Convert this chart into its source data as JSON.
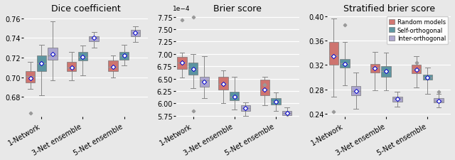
{
  "titles": [
    "Dice coefficient",
    "Brier score",
    "Stratified brier score"
  ],
  "x_labels": [
    "1-Network",
    "3-Net ensemble",
    "5-Net ensemble"
  ],
  "colors": {
    "random": "#C95B54",
    "self": "#3D8290",
    "inter": "#9E96C8"
  },
  "legend_labels": [
    "Random models",
    "Self-orthogonal",
    "Inter-orthogonal"
  ],
  "dice": {
    "random": {
      "1net": {
        "q1": 0.695,
        "med": 0.701,
        "q3": 0.706,
        "whislo": 0.688,
        "whishi": 0.716,
        "mean": 0.699,
        "fliers_lo": [
          0.664
        ],
        "fliers_hi": []
      },
      "3net": {
        "q1": 0.706,
        "med": 0.71,
        "q3": 0.716,
        "whislo": 0.697,
        "whishi": 0.726,
        "mean": 0.71,
        "fliers_lo": [],
        "fliers_hi": []
      },
      "5net": {
        "q1": 0.706,
        "med": 0.711,
        "q3": 0.717,
        "whislo": 0.7,
        "whishi": 0.722,
        "mean": 0.711,
        "fliers_lo": [],
        "fliers_hi": []
      }
    },
    "self": {
      "1net": {
        "q1": 0.706,
        "med": 0.714,
        "q3": 0.722,
        "whislo": 0.682,
        "whishi": 0.733,
        "mean": 0.714,
        "fliers_lo": [],
        "fliers_hi": []
      },
      "3net": {
        "q1": 0.717,
        "med": 0.721,
        "q3": 0.726,
        "whislo": 0.702,
        "whishi": 0.732,
        "mean": 0.721,
        "fliers_lo": [],
        "fliers_hi": []
      },
      "5net": {
        "q1": 0.718,
        "med": 0.722,
        "q3": 0.726,
        "whislo": 0.712,
        "whishi": 0.733,
        "mean": 0.722,
        "fliers_lo": [],
        "fliers_hi": []
      }
    },
    "inter": {
      "1net": {
        "q1": 0.718,
        "med": 0.722,
        "q3": 0.73,
        "whislo": 0.697,
        "whishi": 0.757,
        "mean": 0.724,
        "fliers_lo": [],
        "fliers_hi": []
      },
      "3net": {
        "q1": 0.737,
        "med": 0.74,
        "q3": 0.742,
        "whislo": 0.73,
        "whishi": 0.746,
        "mean": 0.74,
        "fliers_lo": [],
        "fliers_hi": []
      },
      "5net": {
        "q1": 0.742,
        "med": 0.745,
        "q3": 0.748,
        "whislo": 0.736,
        "whishi": 0.752,
        "mean": 0.745,
        "fliers_lo": [],
        "fliers_hi": []
      }
    }
  },
  "brier": {
    "random": {
      "1net": {
        "q1": 0.00067,
        "med": 0.000682,
        "q3": 0.000694,
        "whislo": 0.000652,
        "whishi": 0.000702,
        "mean": 0.000682,
        "fliers_lo": [],
        "fliers_hi": [
          0.000768
        ]
      },
      "3net": {
        "q1": 0.000628,
        "med": 0.00064,
        "q3": 0.000654,
        "whislo": 0.0006,
        "whishi": 0.000666,
        "mean": 0.00064,
        "fliers_lo": [],
        "fliers_hi": []
      },
      "5net": {
        "q1": 0.000616,
        "med": 0.000628,
        "q3": 0.000648,
        "whislo": 0.000596,
        "whishi": 0.000654,
        "mean": 0.000628,
        "fliers_lo": [],
        "fliers_hi": [
          0.000638
        ]
      }
    },
    "self": {
      "1net": {
        "q1": 0.000658,
        "med": 0.00067,
        "q3": 0.000682,
        "whislo": 0.00063,
        "whishi": 0.0007,
        "mean": 0.00067,
        "fliers_lo": [
          0.000584
        ],
        "fliers_hi": [
          0.000774
        ]
      },
      "3net": {
        "q1": 0.000606,
        "med": 0.000614,
        "q3": 0.000624,
        "whislo": 0.000588,
        "whishi": 0.000654,
        "mean": 0.000614,
        "fliers_lo": [],
        "fliers_hi": []
      },
      "5net": {
        "q1": 0.000598,
        "med": 0.000604,
        "q3": 0.00061,
        "whislo": 0.000584,
        "whishi": 0.000622,
        "mean": 0.000604,
        "fliers_lo": [],
        "fliers_hi": []
      }
    },
    "inter": {
      "1net": {
        "q1": 0.000634,
        "med": 0.000646,
        "q3": 0.000654,
        "whislo": 0.00061,
        "whishi": 0.000696,
        "mean": 0.000644,
        "fliers_lo": [],
        "fliers_hi": []
      },
      "3net": {
        "q1": 0.000584,
        "med": 0.00059,
        "q3": 0.000596,
        "whislo": 0.000574,
        "whishi": 0.000602,
        "mean": 0.00059,
        "fliers_lo": [
          0.000568
        ],
        "fliers_hi": []
      },
      "5net": {
        "q1": 0.000576,
        "med": 0.00058,
        "q3": 0.000584,
        "whislo": 0.000568,
        "whishi": 0.000592,
        "mean": 0.00058,
        "fliers_lo": [
          0.000578
        ],
        "fliers_hi": []
      }
    }
  },
  "stratified": {
    "random": {
      "1net": {
        "q1": 0.32,
        "med": 0.336,
        "q3": 0.358,
        "whislo": 0.268,
        "whishi": 0.396,
        "mean": 0.334,
        "fliers_lo": [
          0.243
        ],
        "fliers_hi": []
      },
      "3net": {
        "q1": 0.308,
        "med": 0.316,
        "q3": 0.322,
        "whislo": 0.278,
        "whishi": 0.342,
        "mean": 0.315,
        "fliers_lo": [],
        "fliers_hi": []
      },
      "5net": {
        "q1": 0.306,
        "med": 0.313,
        "q3": 0.32,
        "whislo": 0.283,
        "whishi": 0.334,
        "mean": 0.312,
        "fliers_lo": [],
        "fliers_hi": [
          0.324
        ]
      }
    },
    "self": {
      "1net": {
        "q1": 0.316,
        "med": 0.323,
        "q3": 0.33,
        "whislo": 0.287,
        "whishi": 0.358,
        "mean": 0.322,
        "fliers_lo": [],
        "fliers_hi": [
          0.386
        ]
      },
      "3net": {
        "q1": 0.301,
        "med": 0.31,
        "q3": 0.318,
        "whislo": 0.278,
        "whishi": 0.34,
        "mean": 0.31,
        "fliers_lo": [],
        "fliers_hi": []
      },
      "5net": {
        "q1": 0.296,
        "med": 0.3,
        "q3": 0.304,
        "whislo": 0.272,
        "whishi": 0.316,
        "mean": 0.299,
        "fliers_lo": [],
        "fliers_hi": []
      }
    },
    "inter": {
      "1net": {
        "q1": 0.27,
        "med": 0.277,
        "q3": 0.286,
        "whislo": 0.248,
        "whishi": 0.308,
        "mean": 0.277,
        "fliers_lo": [],
        "fliers_hi": []
      },
      "3net": {
        "q1": 0.26,
        "med": 0.265,
        "q3": 0.268,
        "whislo": 0.252,
        "whishi": 0.276,
        "mean": 0.264,
        "fliers_lo": [],
        "fliers_hi": []
      },
      "5net": {
        "q1": 0.258,
        "med": 0.261,
        "q3": 0.265,
        "whislo": 0.25,
        "whishi": 0.272,
        "mean": 0.261,
        "fliers_lo": [],
        "fliers_hi": [
          0.276
        ]
      }
    }
  },
  "ylims": {
    "dice": [
      0.66,
      0.765
    ],
    "brier": [
      0.000573,
      0.000782
    ],
    "stratified": [
      0.235,
      0.405
    ]
  },
  "yticks": {
    "dice": [
      0.68,
      0.7,
      0.72,
      0.74,
      0.76
    ],
    "brier": [
      0.000575,
      0.0006,
      0.000625,
      0.00065,
      0.000675,
      0.0007,
      0.000725,
      0.00075,
      0.000775
    ],
    "stratified": [
      0.24,
      0.28,
      0.32,
      0.36,
      0.4
    ]
  },
  "background_color": "#E8E8E8"
}
